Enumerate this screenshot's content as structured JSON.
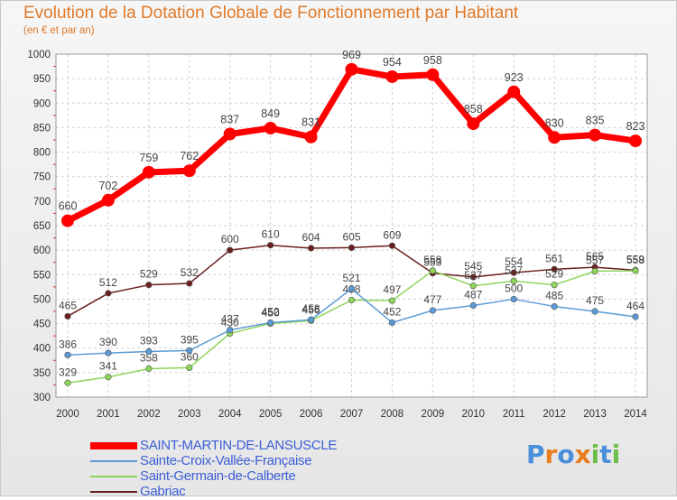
{
  "header": {
    "title": "Evolution de la Dotation Globale de Fonctionnement par Habitant",
    "subtitle": "(en € et par an)"
  },
  "logo": {
    "text": "Proxiti",
    "letters": [
      "P",
      "r",
      "o",
      "x",
      "i",
      "t",
      "i"
    ]
  },
  "colors": {
    "title": "#e07a2a",
    "legend_text": "#3d5fd6",
    "logo": [
      "#4a8fdc",
      "#e87c1e",
      "#4a8fdc",
      "#e87c1e",
      "#6cc04a",
      "#4a8fdc",
      "#6cc04a"
    ]
  },
  "chart_data": {
    "type": "line",
    "title": "Evolution de la Dotation Globale de Fonctionnement par Habitant",
    "ylabel": "(en € et par an)",
    "xlabel": "",
    "categories": [
      "2000",
      "2001",
      "2002",
      "2003",
      "2004",
      "2005",
      "2006",
      "2007",
      "2008",
      "2009",
      "2010",
      "2011",
      "2012",
      "2013",
      "2014"
    ],
    "ylim": [
      300,
      1000
    ],
    "yticks": [
      300,
      350,
      400,
      450,
      500,
      550,
      600,
      650,
      700,
      750,
      800,
      850,
      900,
      950,
      1000
    ],
    "grid": true,
    "legend_position": "bottom-left",
    "series": [
      {
        "name": "SAINT-MARTIN-DE-LANSUSCLE",
        "color": "#ff0000",
        "values": [
          660,
          702,
          759,
          762,
          837,
          849,
          831,
          969,
          954,
          958,
          858,
          923,
          830,
          835,
          823
        ]
      },
      {
        "name": "Sainte-Croix-Vallée-Française",
        "color": "#5b9bd5",
        "values": [
          386,
          390,
          393,
          395,
          437,
          452,
          458,
          521,
          452,
          477,
          487,
          500,
          485,
          475,
          464
        ]
      },
      {
        "name": "Saint-Germain-de-Calberte",
        "color": "#8ed55a",
        "values": [
          329,
          341,
          358,
          360,
          430,
          450,
          456,
          498,
          497,
          558,
          527,
          537,
          529,
          557,
          558
        ]
      },
      {
        "name": "Gabriac",
        "color": "#6b1f1f",
        "values": [
          465,
          512,
          529,
          532,
          600,
          610,
          604,
          605,
          609,
          553,
          545,
          554,
          561,
          565,
          559
        ]
      }
    ]
  }
}
